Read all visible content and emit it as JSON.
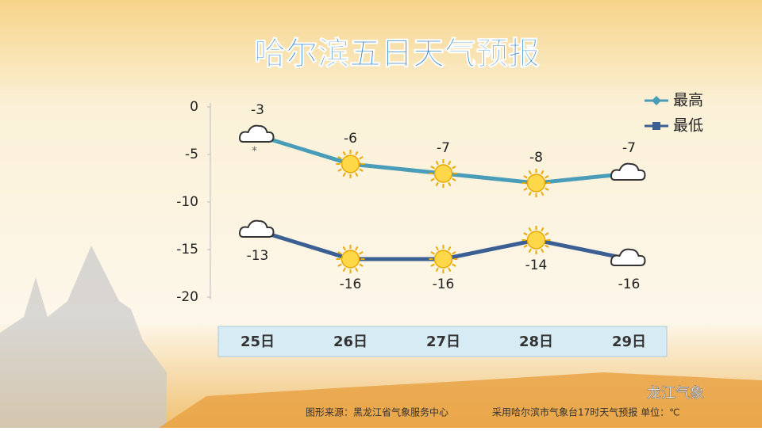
{
  "chart_data": {
    "type": "line",
    "title": "哈尔滨五日天气预报",
    "categories": [
      "25日",
      "26日",
      "27日",
      "28日",
      "29日"
    ],
    "series": [
      {
        "name": "最高",
        "color": "#4a9db8",
        "values": [
          -3,
          -6,
          -7,
          -8,
          -7
        ]
      },
      {
        "name": "最低",
        "color": "#3b5f92",
        "values": [
          -13,
          -16,
          -16,
          -14,
          -16
        ]
      }
    ],
    "ylim": [
      -20,
      0
    ],
    "yticks": [
      0,
      -5,
      -10,
      -15,
      -20
    ],
    "legend": "top-right",
    "source": "图形来源：黑龙江省气象服务中心",
    "note": "采用哈尔滨市气象台17时天气预报 单位：℃",
    "watermark": "龙江气象"
  }
}
